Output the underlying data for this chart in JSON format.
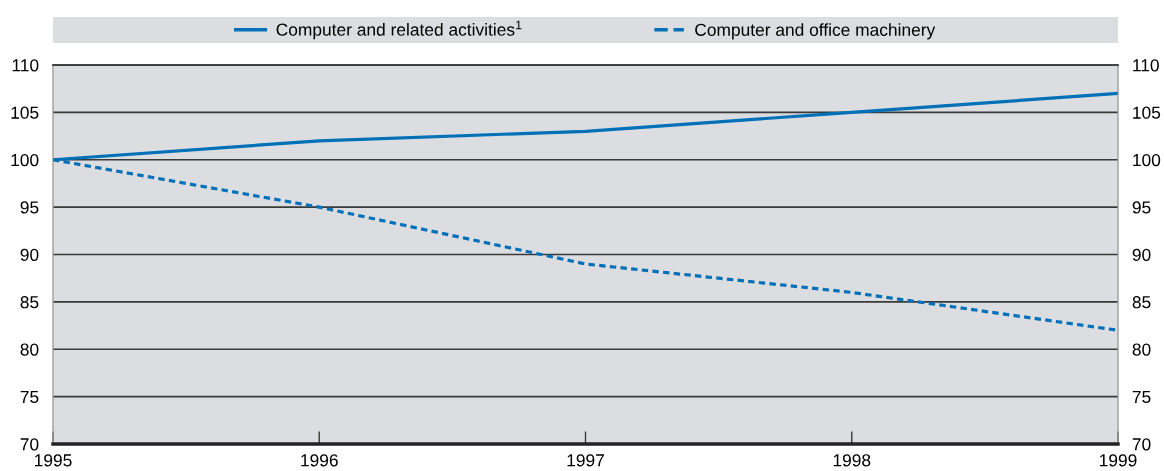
{
  "chart_data": {
    "type": "line",
    "x": [
      1995,
      1996,
      1997,
      1998,
      1999
    ],
    "series": [
      {
        "name": "Computer and related activities$^{1}$",
        "color": "#0070b8",
        "values": [
          100,
          102,
          103,
          105,
          107
        ],
        "line_style": "solid"
      },
      {
        "name": "Computer and office machinery",
        "color": "#0070b8",
        "values": [
          100,
          95,
          89,
          86,
          82
        ],
        "line_style": "dashed"
      }
    ],
    "xlim": [
      1995,
      1999
    ],
    "xticks": [
      1995,
      1996,
      1997,
      1998,
      1999
    ],
    "ylim": [
      70,
      110
    ],
    "yticks": [
      70,
      75,
      80,
      85,
      90,
      95,
      100,
      105,
      110
    ],
    "y2lim": [
      70,
      110
    ],
    "y2ticks": [
      70,
      75,
      80,
      85,
      90,
      95,
      100,
      105,
      110
    ],
    "grid": "y",
    "legend": "top"
  }
}
